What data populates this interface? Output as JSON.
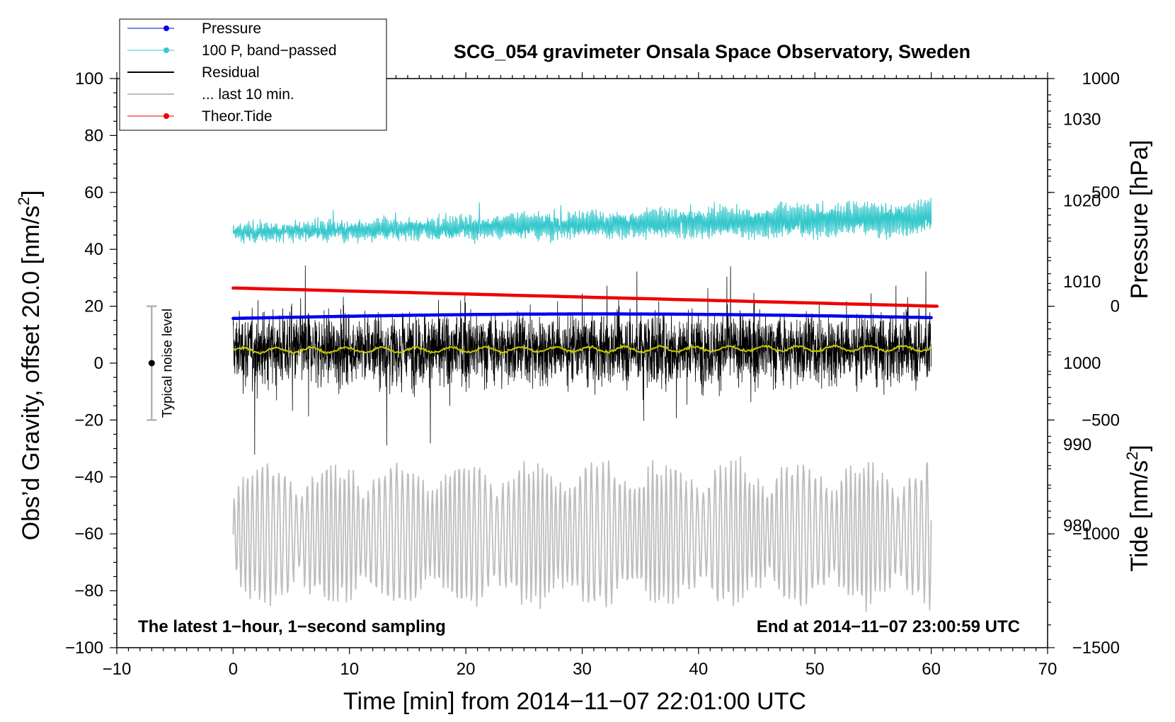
{
  "chart_data": {
    "type": "line",
    "title": "SCG_054 gravimeter Onsala Space Observatory, Sweden",
    "xlabel": "Time [min] from 2014−11−07 22:01:00 UTC",
    "ylabel_left_main": "Obs’d Gravity, offset 20.0 [nm/s",
    "ylabel_left_sup": "2",
    "ylabel_left_end": "]",
    "ylabel_right_pressure": "Pressure [hPa]",
    "ylabel_right_tide_main": "Tide [nm/s",
    "ylabel_right_tide_sup": "2",
    "ylabel_right_tide_end": "]",
    "xlim": [
      -10,
      70
    ],
    "ylim": [
      -100,
      100
    ],
    "pressure_ylim": [
      965,
      1035
    ],
    "tide_ylim": [
      -1500,
      1000
    ],
    "x_ticks": [
      -10,
      0,
      10,
      20,
      30,
      40,
      50,
      60,
      70
    ],
    "x_tick_labels": [
      "−10",
      "0",
      "10",
      "20",
      "30",
      "40",
      "50",
      "60",
      "70"
    ],
    "y_ticks": [
      -100,
      -80,
      -60,
      -40,
      -20,
      0,
      20,
      40,
      60,
      80,
      100
    ],
    "y_tick_labels": [
      "−100",
      "−80",
      "−60",
      "−40",
      "−20",
      "0",
      "20",
      "40",
      "60",
      "80",
      "100"
    ],
    "pressure_ticks": [
      980,
      990,
      1000,
      1010,
      1020,
      1030
    ],
    "pressure_tick_labels": [
      "980",
      "990",
      "1000",
      "1010",
      "1020",
      "1030"
    ],
    "tide_ticks": [
      -1500,
      -1000,
      -500,
      0,
      500,
      1000
    ],
    "tide_tick_labels": [
      "−1500",
      "−1000",
      "−500",
      "0",
      "500",
      "1000"
    ],
    "note_left": "The latest 1−hour, 1−second sampling",
    "note_right": "End at 2014−11−07 23:00:59 UTC",
    "noise_label": "Typical noise level",
    "noise_bar": {
      "x": -7,
      "center": 0,
      "half_range": 20
    },
    "legend_position": "top-left",
    "legend": [
      {
        "label": "Pressure",
        "color": "#0000ee",
        "marker": true,
        "line": 1
      },
      {
        "label": "100 P, band−passed",
        "color": "#35c8cc",
        "marker": true,
        "line": 1
      },
      {
        "label": "Residual",
        "color": "#000000",
        "marker": false,
        "line": 2
      },
      {
        "label": "... last 10 min.",
        "color": "#bdbdbd",
        "marker": false,
        "line": 2
      },
      {
        "label": "Theor.Tide",
        "color": "#ee0000",
        "marker": true,
        "line": 1
      }
    ],
    "series": [
      {
        "name": "Pressure",
        "axis": "pressure",
        "color": "#0000ee",
        "x_range": [
          0,
          60
        ],
        "start": 1005.5,
        "end": 1005.6,
        "peak": 1006.0
      },
      {
        "name": "100 P, band-passed",
        "axis": "gravity",
        "color": "#35c8cc",
        "x_range": [
          0,
          60
        ],
        "start": 46,
        "end": 51,
        "amplitude": 7
      },
      {
        "name": "Residual",
        "axis": "gravity",
        "color": "#000000",
        "x_range": [
          0,
          60
        ],
        "mean": 5,
        "amplitude": 35
      },
      {
        "name": "Residual smoothed",
        "axis": "gravity",
        "color": "#c8c800",
        "x_range": [
          0,
          60
        ],
        "mean": 5
      },
      {
        "name": "... last 10 min.",
        "axis": "gravity",
        "color": "#bdbdbd",
        "x_range": [
          0,
          60
        ],
        "mean": -60,
        "amplitude": 25
      },
      {
        "name": "Theor.Tide",
        "axis": "tide",
        "color": "#ee0000",
        "x_range": [
          0,
          60.5
        ],
        "start": 80,
        "end": 0
      }
    ]
  }
}
